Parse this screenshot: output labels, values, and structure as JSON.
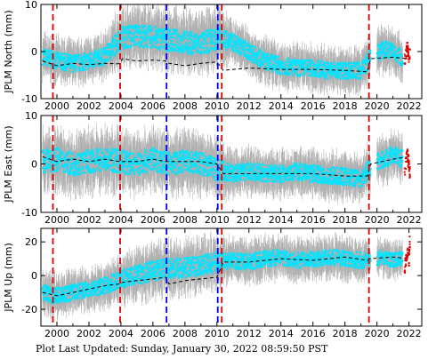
{
  "chart_data": [
    {
      "type": "scatter",
      "ylabel": "JPLM North (mm)",
      "ylim": [
        -10,
        10
      ],
      "yticks": [
        -10,
        0,
        10
      ],
      "xlim": [
        1999.0,
        2022.8
      ],
      "xticks": [
        2000,
        2002,
        2004,
        2006,
        2008,
        2010,
        2012,
        2014,
        2016,
        2018,
        2020,
        2022
      ],
      "grid": false,
      "vlines": [
        {
          "x": 1999.75,
          "color": "#dd0000"
        },
        {
          "x": 2003.95,
          "color": "#dd0000"
        },
        {
          "x": 2006.85,
          "color": "#0000ee"
        },
        {
          "x": 2010.05,
          "color": "#0000ee"
        },
        {
          "x": 2010.3,
          "color": "#dd0000"
        },
        {
          "x": 2019.5,
          "color": "#dd0000"
        }
      ],
      "series": [
        {
          "role": "observations",
          "color": "#00e5ff",
          "error_color": "#b0b0b0",
          "x": [
            1999.1,
            2000,
            2001,
            2002,
            2003,
            2004,
            2005,
            2006,
            2007,
            2008,
            2009,
            2010,
            2011,
            2012,
            2013,
            2014,
            2015,
            2016,
            2017,
            2018,
            2019,
            2019.8,
            2020.5,
            2021,
            2021.6
          ],
          "y": [
            -1,
            -2,
            -2.5,
            -2,
            -1,
            3,
            3.5,
            3,
            2.5,
            2,
            1.5,
            3,
            2,
            0,
            -2,
            -3,
            -3.5,
            -3.5,
            -4,
            -4,
            -4,
            -0.5,
            0.5,
            0,
            -1.5
          ],
          "err": [
            3,
            3,
            3,
            3,
            3,
            4,
            4,
            4,
            4,
            4,
            4,
            4,
            3,
            3,
            3,
            3,
            3,
            3,
            3,
            3,
            3,
            3,
            3,
            3,
            3
          ]
        },
        {
          "role": "model",
          "color": "#000000",
          "style": "dashed",
          "x": [
            1999.1,
            2000,
            2001,
            2002,
            2003,
            2003.9,
            2004.1,
            2005,
            2006,
            2006.8,
            2007,
            2008,
            2009,
            2010,
            2010.4,
            2012,
            2014,
            2016,
            2018,
            2019.4,
            2019.6,
            2021,
            2022
          ],
          "y": [
            -2,
            -3,
            -2.5,
            -2.8,
            -2.5,
            -2.6,
            -1.5,
            -2,
            -1.8,
            -2,
            -2.5,
            -3,
            -2.5,
            -2.2,
            -4,
            -3.5,
            -3.8,
            -3.8,
            -4,
            -4.3,
            -1.5,
            -1.2,
            -1.5
          ]
        },
        {
          "role": "recent",
          "color": "#dd0000",
          "x": [
            2021.75,
            2021.9,
            2022.0,
            2022.05
          ],
          "y": [
            -2,
            1,
            -1,
            0
          ]
        }
      ]
    },
    {
      "type": "scatter",
      "ylabel": "JPLM East (mm)",
      "ylim": [
        -10,
        10
      ],
      "yticks": [
        -10,
        0,
        10
      ],
      "xlim": [
        1999.0,
        2022.8
      ],
      "xticks": [
        2000,
        2002,
        2004,
        2006,
        2008,
        2010,
        2012,
        2014,
        2016,
        2018,
        2020,
        2022
      ],
      "grid": false,
      "vlines": [
        {
          "x": 1999.75,
          "color": "#dd0000"
        },
        {
          "x": 2003.95,
          "color": "#dd0000"
        },
        {
          "x": 2006.85,
          "color": "#0000ee"
        },
        {
          "x": 2010.05,
          "color": "#0000ee"
        },
        {
          "x": 2010.3,
          "color": "#dd0000"
        },
        {
          "x": 2019.5,
          "color": "#dd0000"
        }
      ],
      "series": [
        {
          "role": "observations",
          "color": "#00e5ff",
          "error_color": "#b0b0b0",
          "x": [
            1999.1,
            2000,
            2001,
            2002,
            2003,
            2004,
            2005,
            2006,
            2007,
            2008,
            2009,
            2010,
            2011,
            2012,
            2013,
            2014,
            2015,
            2016,
            2017,
            2018,
            2019,
            2019.8,
            2020.5,
            2021,
            2021.6
          ],
          "y": [
            0.5,
            1,
            0,
            0.5,
            1,
            0.5,
            0,
            1,
            0,
            0.5,
            0,
            -1,
            -2,
            -1.5,
            -2,
            -2,
            -1.5,
            -2,
            -2.5,
            -2.5,
            -3,
            0,
            1,
            2,
            1
          ],
          "err": [
            4,
            4,
            4,
            4,
            4,
            4,
            4,
            4,
            4,
            4,
            4,
            4,
            3,
            3,
            3,
            3,
            3,
            3,
            3,
            3,
            3,
            3,
            3,
            3,
            3
          ]
        },
        {
          "role": "model",
          "color": "#000000",
          "style": "dashed",
          "x": [
            1999.1,
            2000,
            2001,
            2002,
            2003,
            2003.9,
            2004.1,
            2005,
            2006,
            2006.8,
            2007,
            2008,
            2009,
            2010,
            2010.4,
            2012,
            2014,
            2016,
            2018,
            2019.4,
            2019.6,
            2021,
            2022
          ],
          "y": [
            1.5,
            0.5,
            1,
            0.5,
            1,
            0.5,
            0.5,
            0.5,
            1,
            0.5,
            0.5,
            0.5,
            0.5,
            0,
            -2,
            -2,
            -2,
            -2,
            -2.5,
            -2.5,
            0,
            1,
            1.5
          ]
        },
        {
          "role": "recent",
          "color": "#dd0000",
          "x": [
            2021.75,
            2021.9,
            2022.0,
            2022.05
          ],
          "y": [
            -1,
            2,
            0,
            -2
          ]
        }
      ]
    },
    {
      "type": "scatter",
      "ylabel": "JPLM Up (mm)",
      "ylim": [
        -30,
        28
      ],
      "yticks": [
        -20,
        0,
        20
      ],
      "xlim": [
        1999.0,
        2022.8
      ],
      "xticks": [
        2000,
        2002,
        2004,
        2006,
        2008,
        2010,
        2012,
        2014,
        2016,
        2018,
        2020,
        2022
      ],
      "grid": false,
      "vlines": [
        {
          "x": 1999.75,
          "color": "#dd0000"
        },
        {
          "x": 2003.95,
          "color": "#dd0000"
        },
        {
          "x": 2006.85,
          "color": "#0000ee"
        },
        {
          "x": 2010.05,
          "color": "#0000ee"
        },
        {
          "x": 2010.3,
          "color": "#dd0000"
        },
        {
          "x": 2019.5,
          "color": "#dd0000"
        }
      ],
      "series": [
        {
          "role": "observations",
          "color": "#00e5ff",
          "error_color": "#b0b0b0",
          "x": [
            1999.1,
            2000,
            2001,
            2002,
            2003,
            2004,
            2005,
            2006,
            2007,
            2008,
            2009,
            2010,
            2011,
            2012,
            2013,
            2014,
            2015,
            2016,
            2017,
            2018,
            2019,
            2019.8,
            2020.5,
            2021,
            2021.6
          ],
          "y": [
            -10,
            -12,
            -10,
            -8,
            -6,
            -2,
            0,
            3,
            4,
            5,
            6,
            8,
            9,
            8,
            10,
            11,
            9,
            10,
            11,
            10,
            9,
            10,
            11,
            9,
            10
          ],
          "err": [
            8,
            8,
            8,
            8,
            8,
            9,
            10,
            10,
            10,
            10,
            10,
            10,
            8,
            8,
            8,
            8,
            8,
            8,
            8,
            8,
            8,
            7,
            7,
            7,
            7
          ]
        },
        {
          "role": "model",
          "color": "#000000",
          "style": "dashed",
          "x": [
            1999.1,
            2000,
            2001,
            2002,
            2003,
            2003.9,
            2004.1,
            2005,
            2006,
            2006.8,
            2007,
            2008,
            2009,
            2010,
            2010.4,
            2012,
            2014,
            2016,
            2018,
            2019.4,
            2019.6,
            2021,
            2022
          ],
          "y": [
            -10,
            -12,
            -10,
            -8,
            -6,
            -5,
            -4,
            -3,
            -2,
            -1,
            -5,
            -3,
            -2,
            -1,
            8,
            8,
            10,
            9,
            11,
            9,
            10,
            11,
            10
          ]
        },
        {
          "role": "recent",
          "color": "#dd0000",
          "x": [
            2021.75,
            2021.9,
            2022.0,
            2022.05
          ],
          "y": [
            5,
            15,
            10,
            20
          ]
        }
      ]
    }
  ],
  "footer": {
    "label": "Plot Last Updated:",
    "timestamp": "Sunday, January 30, 2022 08:59:50 PST"
  }
}
